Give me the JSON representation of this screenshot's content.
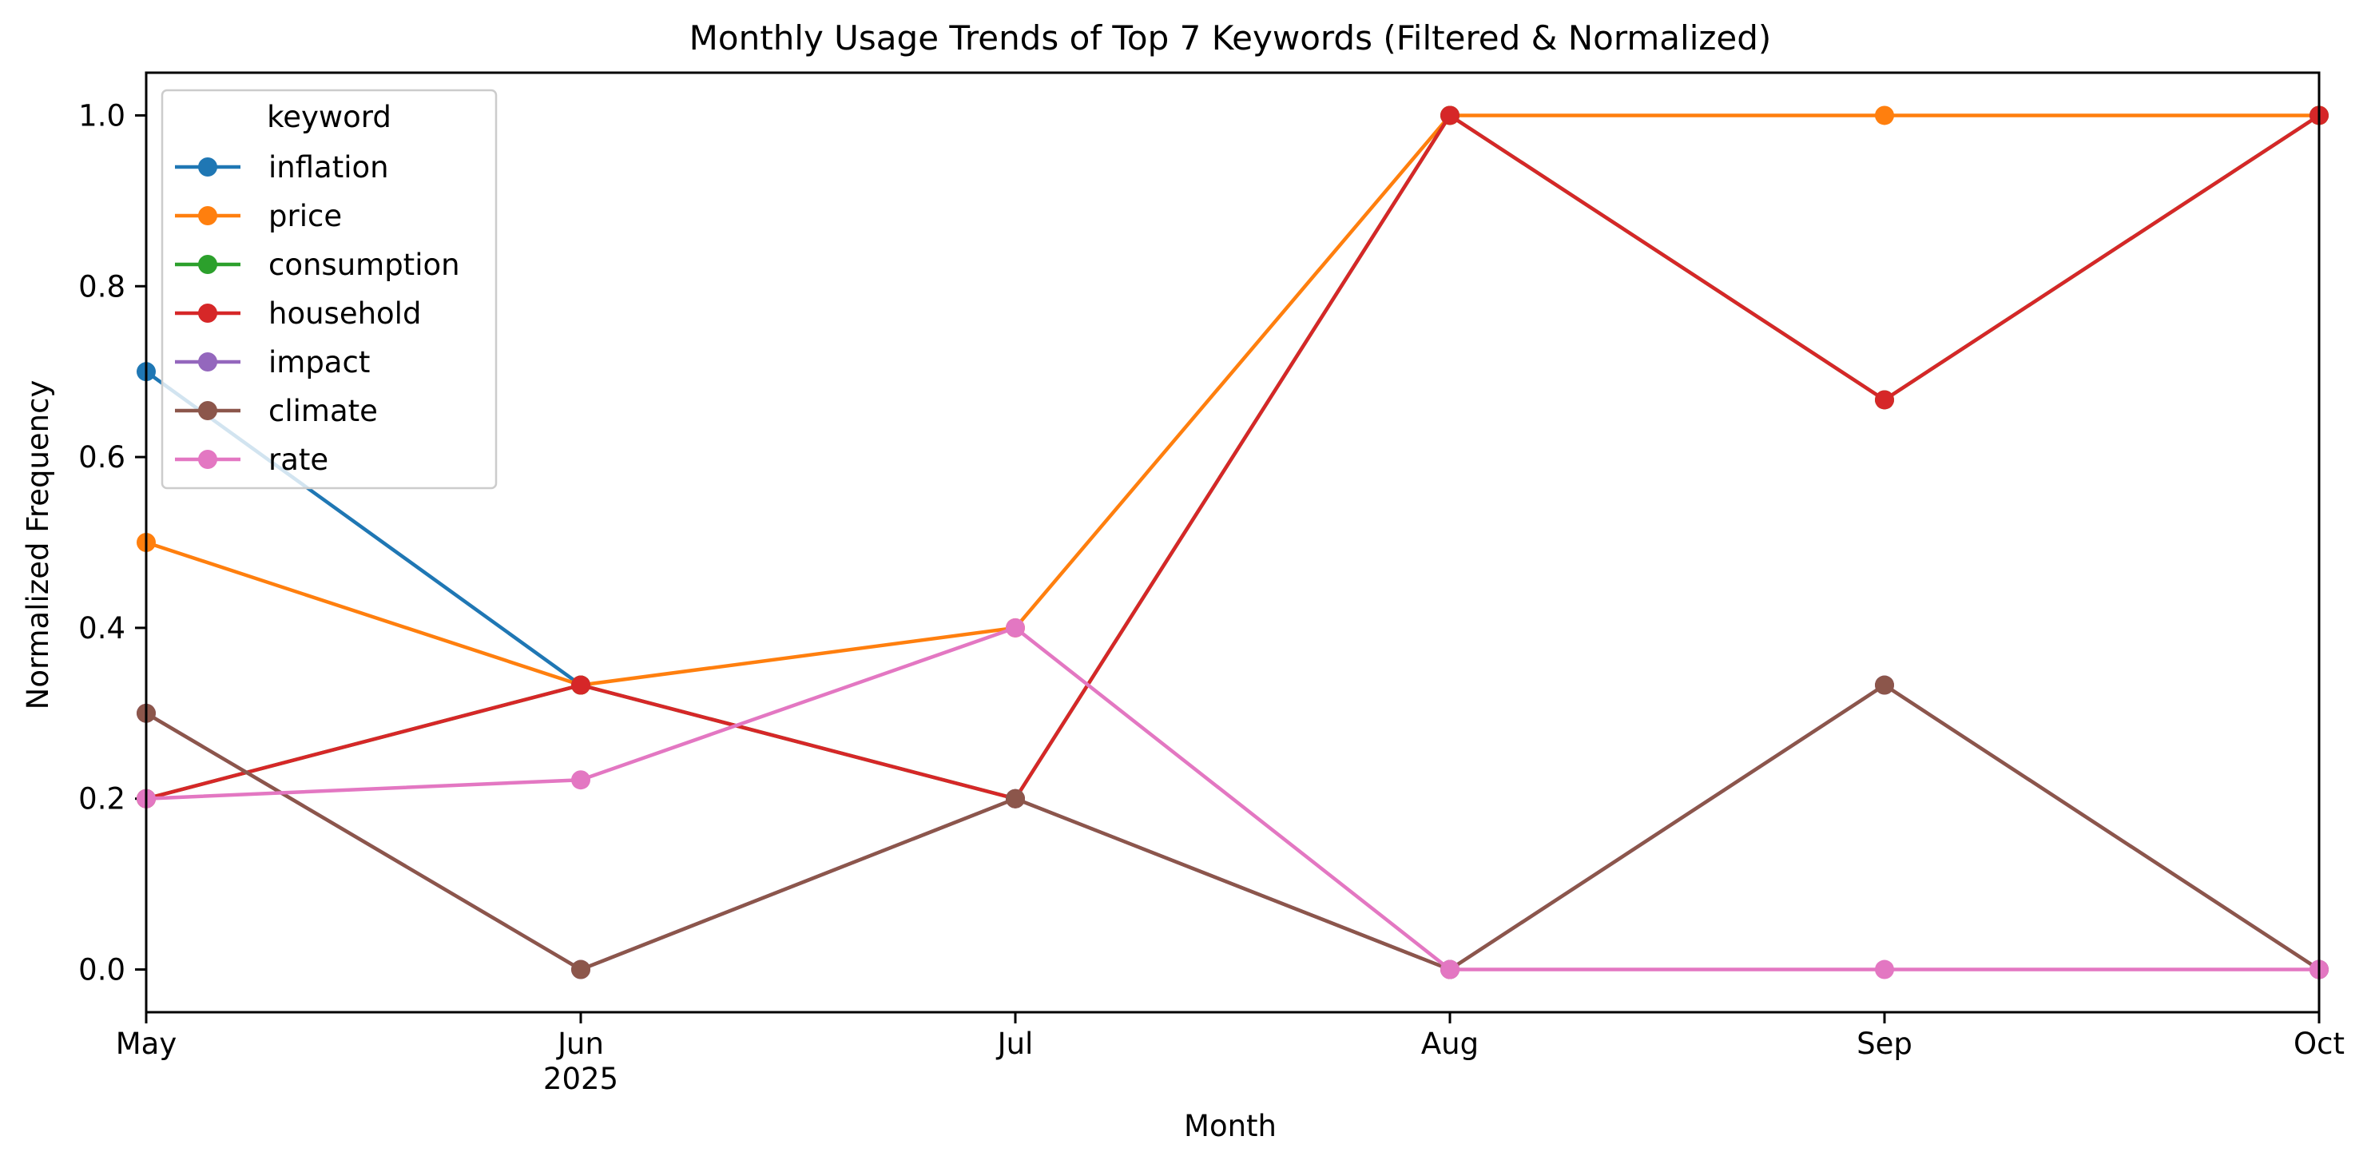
{
  "chart_data": {
    "type": "line",
    "title": "Monthly Usage Trends of Top 7 Keywords (Filtered & Normalized)",
    "xlabel": "Month",
    "ylabel": "Normalized Frequency",
    "x": [
      "May",
      "Jun",
      "Jul",
      "Aug",
      "Sep",
      "Oct"
    ],
    "x_secondary_label": "2025",
    "ylim": [
      -0.05,
      1.05
    ],
    "yticks": [
      "0.0",
      "0.2",
      "0.4",
      "0.6",
      "0.8",
      "1.0"
    ],
    "grid": false,
    "legend": {
      "title": "keyword",
      "placement": "upper-left"
    },
    "series": [
      {
        "name": "inflation",
        "color": "#1f77b4",
        "values": [
          0.7,
          0.333,
          null,
          null,
          null,
          null
        ]
      },
      {
        "name": "price",
        "color": "#ff7f0e",
        "values": [
          0.5,
          0.333,
          0.4,
          1.0,
          1.0,
          1.0
        ]
      },
      {
        "name": "consumption",
        "color": "#2ca02c",
        "values": [
          0.2,
          0.333,
          0.2,
          1.0,
          0.667,
          1.0
        ]
      },
      {
        "name": "household",
        "color": "#d62728",
        "values": [
          0.2,
          0.333,
          0.2,
          1.0,
          0.667,
          1.0
        ]
      },
      {
        "name": "impact",
        "color": "#9467bd",
        "values": [
          0.3,
          0.0,
          0.2,
          0.0,
          0.333,
          0.0
        ]
      },
      {
        "name": "climate",
        "color": "#8c564b",
        "values": [
          0.3,
          0.0,
          0.2,
          0.0,
          0.333,
          0.0
        ]
      },
      {
        "name": "rate",
        "color": "#e377c2",
        "values": [
          0.2,
          0.222,
          0.4,
          0.0,
          0.0,
          0.0
        ]
      }
    ]
  }
}
